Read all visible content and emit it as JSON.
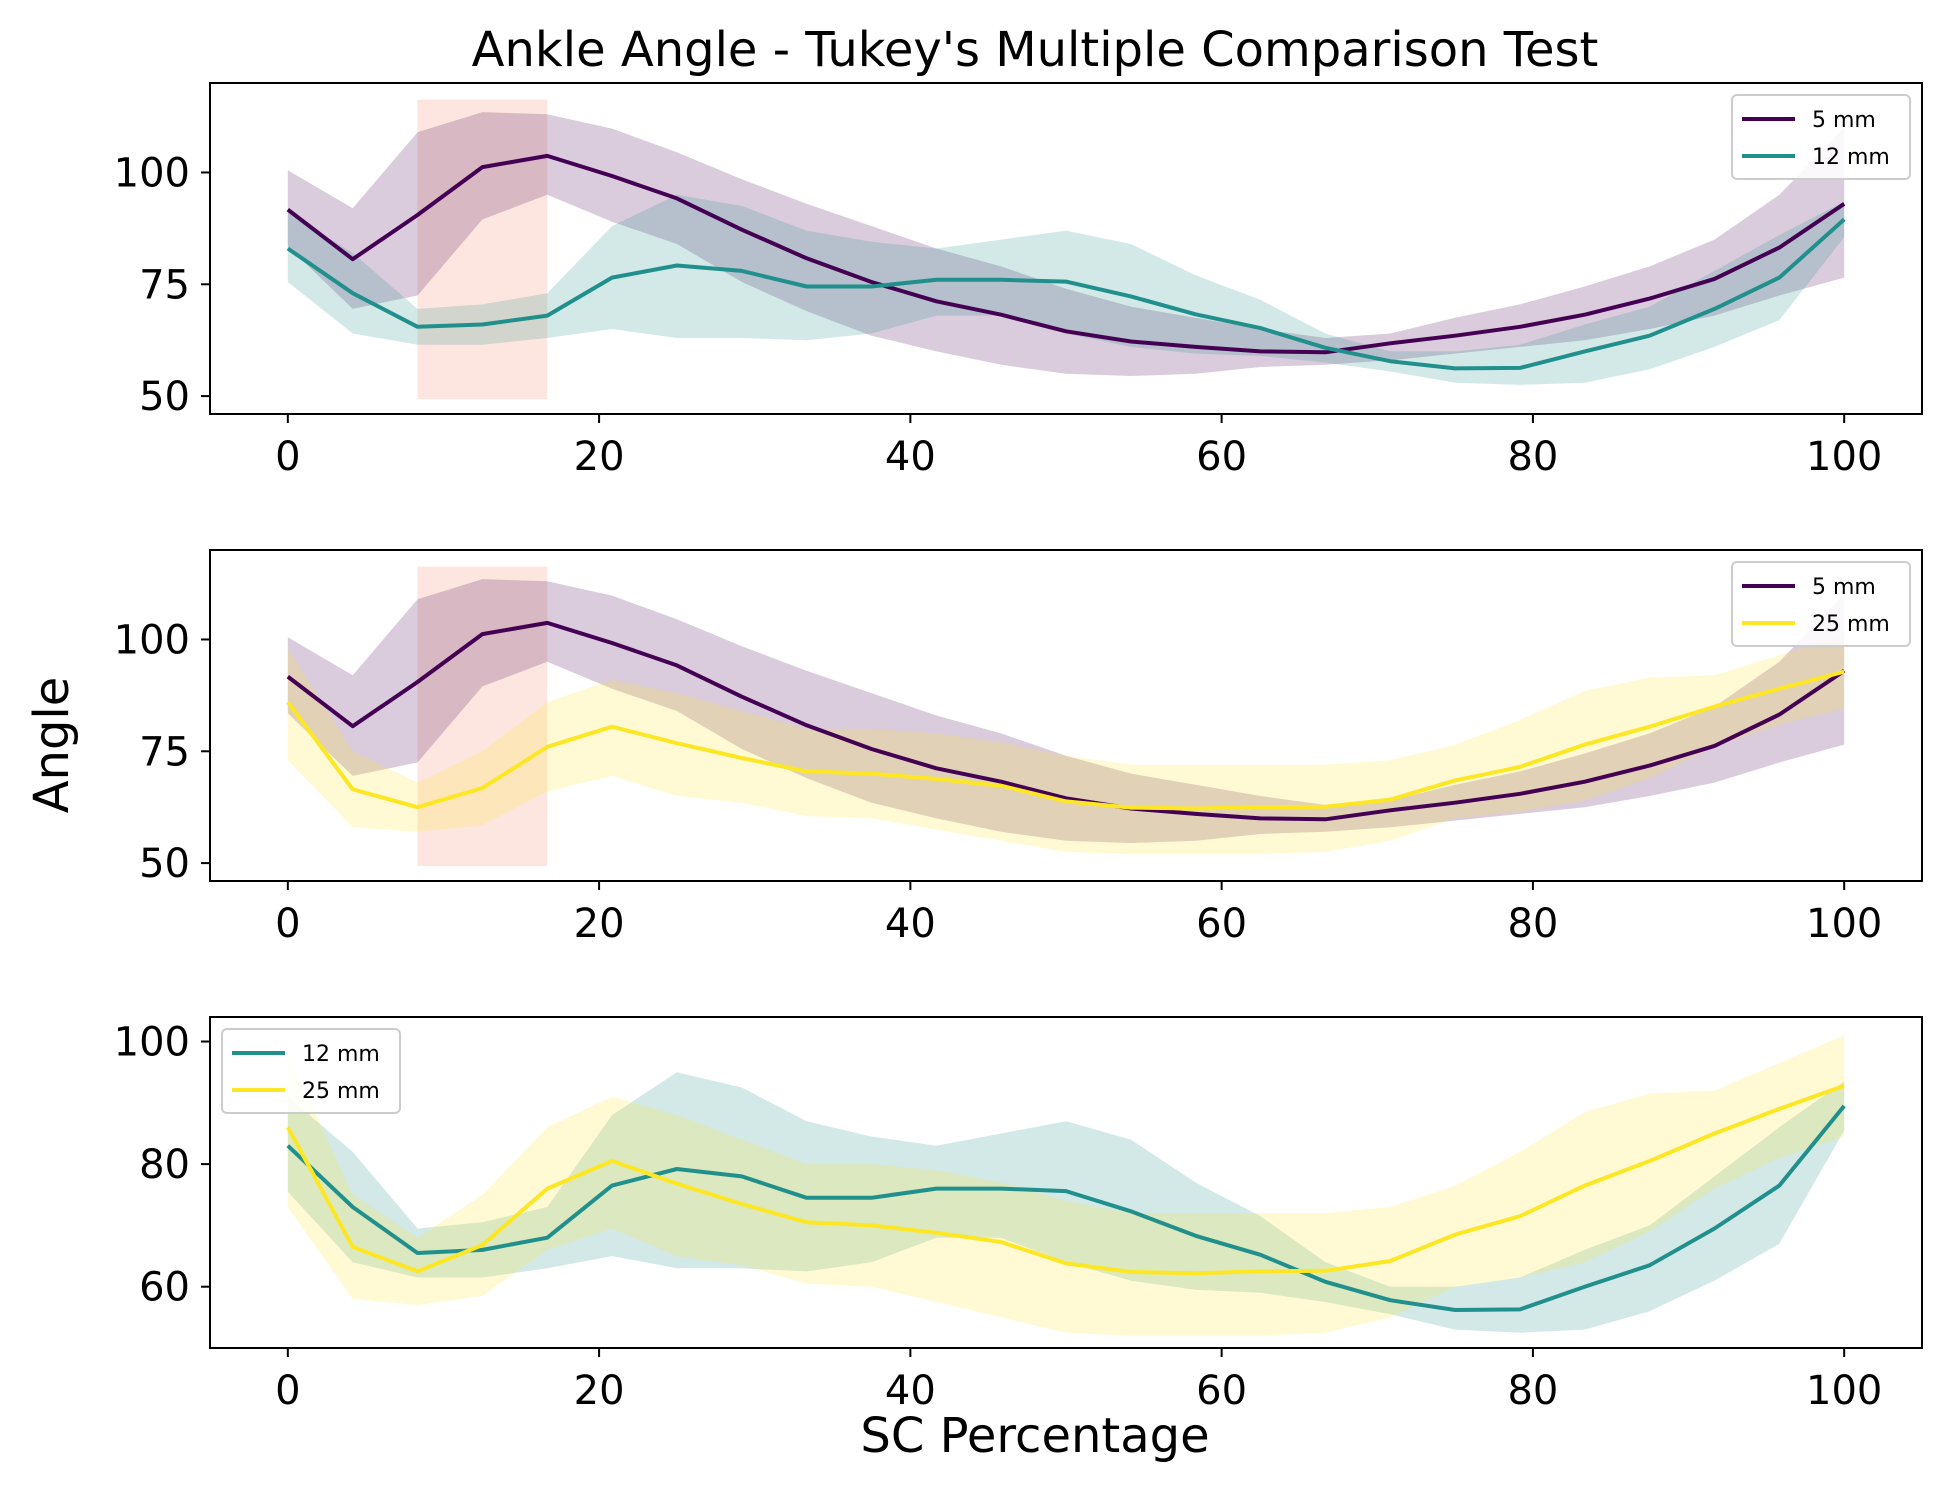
{
  "figure": {
    "title": "Ankle Angle - Tukey's Multiple Comparison Test",
    "xlabel": "SC Percentage",
    "ylabel": "Angle"
  },
  "colors": {
    "5 mm": "#440154",
    "12 mm": "#21908d",
    "25 mm": "#fde725",
    "significance": "#fcd2c4"
  },
  "chart_data": [
    {
      "type": "line",
      "panel": "top",
      "x": [
        0,
        4.17,
        8.33,
        12.5,
        16.67,
        20.83,
        25,
        29.17,
        33.33,
        37.5,
        41.67,
        45.83,
        50,
        54.17,
        58.33,
        62.5,
        66.67,
        70.83,
        75,
        79.17,
        83.33,
        87.5,
        91.67,
        95.83,
        100
      ],
      "xlim": [
        -5,
        105
      ],
      "ylim": [
        46,
        120
      ],
      "xticks": [
        0,
        20,
        40,
        60,
        80,
        100
      ],
      "yticks": [
        50,
        75,
        100
      ],
      "legend": "top-right",
      "shaded_regions": [
        [
          8.33,
          16.67
        ]
      ],
      "series": [
        {
          "name": "5 mm",
          "mean": [
            91.7,
            80.6,
            90.5,
            101.2,
            103.7,
            99.2,
            94.2,
            87.2,
            80.8,
            75.5,
            71.2,
            68.2,
            64.5,
            62.2,
            61.0,
            60.0,
            59.8,
            61.8,
            63.5,
            65.5,
            68.2,
            71.8,
            76.2,
            83.2,
            93.0
          ],
          "upper": [
            100.5,
            92.0,
            109.0,
            113.5,
            113.0,
            109.8,
            104.5,
            98.5,
            93.0,
            88.0,
            83.0,
            79.0,
            74.0,
            70.0,
            67.5,
            65.0,
            63.0,
            64.0,
            67.5,
            70.5,
            74.5,
            79.0,
            85.0,
            95.0,
            110.0
          ],
          "lower": [
            83.5,
            69.5,
            72.5,
            89.5,
            95.0,
            89.0,
            84.0,
            75.5,
            69.0,
            63.5,
            60.0,
            57.0,
            55.0,
            54.5,
            55.0,
            56.5,
            57.0,
            58.0,
            59.5,
            61.0,
            62.5,
            65.0,
            68.0,
            72.5,
            76.5
          ]
        },
        {
          "name": "12 mm",
          "mean": [
            83.0,
            73.0,
            65.5,
            66.0,
            68.0,
            76.5,
            79.2,
            78.0,
            74.5,
            74.5,
            76.0,
            76.0,
            75.6,
            72.3,
            68.3,
            65.2,
            60.8,
            57.8,
            56.2,
            56.3,
            60.0,
            63.5,
            69.5,
            76.5,
            89.5
          ],
          "upper": [
            91.0,
            82.0,
            69.5,
            70.5,
            73.0,
            88.0,
            95.0,
            92.5,
            87.0,
            84.5,
            83.0,
            85.0,
            87.0,
            84.0,
            77.0,
            71.5,
            64.0,
            60.0,
            60.0,
            61.5,
            66.0,
            70.0,
            78.0,
            86.0,
            93.5
          ],
          "lower": [
            75.5,
            64.0,
            61.5,
            61.5,
            63.0,
            65.0,
            63.0,
            63.0,
            62.5,
            64.0,
            68.0,
            68.0,
            64.0,
            61.0,
            59.5,
            59.0,
            57.5,
            55.5,
            53.0,
            52.5,
            53.0,
            56.0,
            61.0,
            67.0,
            85.5
          ]
        }
      ]
    },
    {
      "type": "line",
      "panel": "middle",
      "x": [
        0,
        4.17,
        8.33,
        12.5,
        16.67,
        20.83,
        25,
        29.17,
        33.33,
        37.5,
        41.67,
        45.83,
        50,
        54.17,
        58.33,
        62.5,
        66.67,
        70.83,
        75,
        79.17,
        83.33,
        87.5,
        91.67,
        95.83,
        100
      ],
      "xlim": [
        -5,
        105
      ],
      "ylim": [
        46,
        120
      ],
      "xticks": [
        0,
        20,
        40,
        60,
        80,
        100
      ],
      "yticks": [
        50,
        75,
        100
      ],
      "legend": "top-right",
      "shaded_regions": [
        [
          8.33,
          16.67
        ]
      ],
      "series": [
        {
          "name": "5 mm",
          "mean": [
            91.7,
            80.6,
            90.5,
            101.2,
            103.7,
            99.2,
            94.2,
            87.2,
            80.8,
            75.5,
            71.2,
            68.2,
            64.5,
            62.2,
            61.0,
            60.0,
            59.8,
            61.8,
            63.5,
            65.5,
            68.2,
            71.8,
            76.2,
            83.2,
            93.0
          ],
          "upper": [
            100.5,
            92.0,
            109.0,
            113.5,
            113.0,
            109.8,
            104.5,
            98.5,
            93.0,
            88.0,
            83.0,
            79.0,
            74.0,
            70.0,
            67.5,
            65.0,
            63.0,
            64.0,
            67.5,
            70.5,
            74.5,
            79.0,
            85.0,
            95.0,
            110.0
          ],
          "lower": [
            83.5,
            69.5,
            72.5,
            89.5,
            95.0,
            89.0,
            84.0,
            75.5,
            69.0,
            63.5,
            60.0,
            57.0,
            55.0,
            54.5,
            55.0,
            56.5,
            57.0,
            58.0,
            59.5,
            61.0,
            62.5,
            65.0,
            68.0,
            72.5,
            76.5
          ]
        },
        {
          "name": "25 mm",
          "mean": [
            86.0,
            66.5,
            62.5,
            66.8,
            76.0,
            80.5,
            76.8,
            73.5,
            70.5,
            70.0,
            68.8,
            67.3,
            63.8,
            62.4,
            62.2,
            62.5,
            62.6,
            64.2,
            68.5,
            71.5,
            76.5,
            80.5,
            85.0,
            89.0,
            92.8
          ],
          "upper": [
            98.0,
            75.0,
            68.0,
            75.0,
            86.0,
            91.0,
            88.0,
            84.0,
            80.0,
            80.0,
            79.0,
            77.0,
            74.0,
            72.0,
            72.0,
            72.0,
            72.0,
            73.0,
            76.5,
            82.0,
            88.5,
            91.5,
            92.0,
            96.5,
            101.0
          ],
          "lower": [
            73.0,
            58.0,
            57.0,
            58.5,
            66.0,
            69.5,
            65.0,
            63.5,
            60.5,
            60.0,
            57.5,
            55.0,
            52.5,
            52.0,
            52.0,
            52.0,
            52.5,
            55.0,
            60.0,
            61.5,
            64.0,
            69.0,
            76.0,
            81.0,
            84.5
          ]
        }
      ]
    },
    {
      "type": "line",
      "panel": "bottom",
      "x": [
        0,
        4.17,
        8.33,
        12.5,
        16.67,
        20.83,
        25,
        29.17,
        33.33,
        37.5,
        41.67,
        45.83,
        50,
        54.17,
        58.33,
        62.5,
        66.67,
        70.83,
        75,
        79.17,
        83.33,
        87.5,
        91.67,
        95.83,
        100
      ],
      "xlim": [
        -5,
        105
      ],
      "ylim": [
        50,
        104
      ],
      "xticks": [
        0,
        20,
        40,
        60,
        80,
        100
      ],
      "yticks": [
        60,
        80,
        100
      ],
      "legend": "top-left",
      "shaded_regions": [],
      "series": [
        {
          "name": "12 mm",
          "mean": [
            83.0,
            73.0,
            65.5,
            66.0,
            68.0,
            76.5,
            79.2,
            78.0,
            74.5,
            74.5,
            76.0,
            76.0,
            75.6,
            72.3,
            68.3,
            65.2,
            60.8,
            57.8,
            56.2,
            56.3,
            60.0,
            63.5,
            69.5,
            76.5,
            89.5
          ],
          "upper": [
            91.0,
            82.0,
            69.5,
            70.5,
            73.0,
            88.0,
            95.0,
            92.5,
            87.0,
            84.5,
            83.0,
            85.0,
            87.0,
            84.0,
            77.0,
            71.5,
            64.0,
            60.0,
            60.0,
            61.5,
            66.0,
            70.0,
            78.0,
            86.0,
            93.5
          ],
          "lower": [
            75.5,
            64.0,
            61.5,
            61.5,
            63.0,
            65.0,
            63.0,
            63.0,
            62.5,
            64.0,
            68.0,
            68.0,
            64.0,
            61.0,
            59.5,
            59.0,
            57.5,
            55.5,
            53.0,
            52.5,
            53.0,
            56.0,
            61.0,
            67.0,
            85.5
          ]
        },
        {
          "name": "25 mm",
          "mean": [
            86.0,
            66.5,
            62.5,
            66.8,
            76.0,
            80.5,
            76.8,
            73.5,
            70.5,
            70.0,
            68.8,
            67.3,
            63.8,
            62.4,
            62.2,
            62.5,
            62.6,
            64.2,
            68.5,
            71.5,
            76.5,
            80.5,
            85.0,
            89.0,
            92.8
          ],
          "upper": [
            98.0,
            75.0,
            68.0,
            75.0,
            86.0,
            91.0,
            88.0,
            84.0,
            80.0,
            80.0,
            79.0,
            77.0,
            74.0,
            72.0,
            72.0,
            72.0,
            72.0,
            73.0,
            76.5,
            82.0,
            88.5,
            91.5,
            92.0,
            96.5,
            101.0
          ],
          "lower": [
            73.0,
            58.0,
            57.0,
            58.5,
            66.0,
            69.5,
            65.0,
            63.5,
            60.5,
            60.0,
            57.5,
            55.0,
            52.5,
            52.0,
            52.0,
            52.0,
            52.5,
            55.0,
            60.0,
            61.5,
            64.0,
            69.0,
            76.0,
            81.0,
            84.5
          ]
        }
      ]
    }
  ]
}
